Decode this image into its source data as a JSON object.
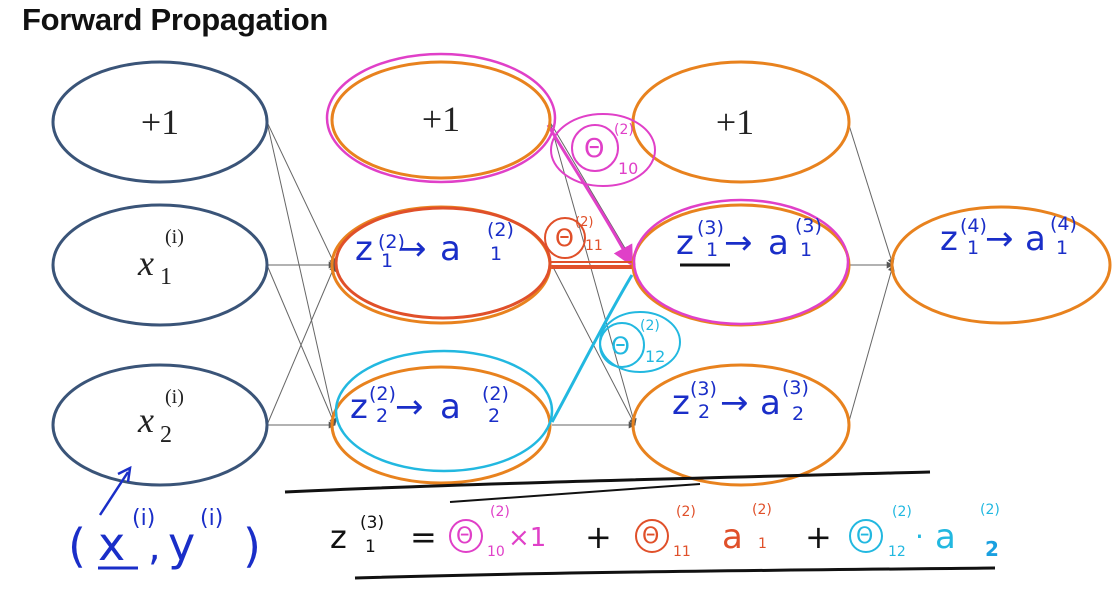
{
  "title": "Forward Propagation",
  "nodes": {
    "l1_bias": "+1",
    "l1_x1": {
      "base": "x",
      "sub": "1",
      "sup": "(i)"
    },
    "l1_x2": {
      "base": "x",
      "sub": "2",
      "sup": "(i)"
    },
    "l2_bias": "+1",
    "l2_u1": {
      "z": "z",
      "z_sub": "1",
      "z_sup": "(2)",
      "arrow": "→",
      "a": "a",
      "a_sub": "1",
      "a_sup": "(2)"
    },
    "l2_u2": {
      "z": "z",
      "z_sub": "2",
      "z_sup": "(2)",
      "arrow": "→",
      "a": "a",
      "a_sub": "2",
      "a_sup": "(2)"
    },
    "l3_bias": "+1",
    "l3_u1": {
      "z": "z",
      "z_sub": "1",
      "z_sup": "(3)",
      "arrow": "→",
      "a": "a",
      "a_sub": "1",
      "a_sup": "(3)"
    },
    "l3_u2": {
      "z": "z",
      "z_sub": "2",
      "z_sup": "(3)",
      "arrow": "→",
      "a": "a",
      "a_sub": "2",
      "a_sup": "(3)"
    },
    "l4_u1": {
      "z": "z",
      "z_sub": "1",
      "z_sup": "(4)",
      "arrow": "→",
      "a": "a",
      "a_sub": "1",
      "a_sup": "(4)"
    }
  },
  "weights": {
    "w10": {
      "sym": "Θ",
      "sup": "(2)",
      "sub": "10"
    },
    "w11": {
      "sym": "Θ",
      "sup": "(2)",
      "sub": "11"
    },
    "w12": {
      "sym": "Θ",
      "sup": "(2)",
      "sub": "12"
    }
  },
  "example": {
    "open": "(",
    "x": "x",
    "x_sup": "(i)",
    "comma": ",",
    "y": "y",
    "y_sup": "(i)",
    "close": ")"
  },
  "equation": {
    "lhs": "z",
    "lhs_sup": "(3)",
    "lhs_sub": "1",
    "eq": "=",
    "t1_sym": "Θ",
    "t1_sup": "(2)",
    "t1_sub": "10",
    "t1_mul": "×1",
    "plus1": "+",
    "t2_sym": "Θ",
    "t2_sup": "(2)",
    "t2_sub": "11",
    "t2_a": "a",
    "t2_a_sup": "(2)",
    "t2_a_sub": "1",
    "plus2": "+",
    "t3_sym": "Θ",
    "t3_sup": "(2)",
    "t3_sub": "12",
    "t3_dot": "·",
    "t3_a": "a",
    "t3_a_sup": "(2)",
    "t3_a_sub": "2"
  },
  "colors": {
    "input_nodes": "#3a5478",
    "hidden_nodes": "#e8821e",
    "handwriting": "#1a2ec8",
    "theta10": "#e040c8",
    "theta11": "#e0502a",
    "theta12": "#22b8e0"
  }
}
